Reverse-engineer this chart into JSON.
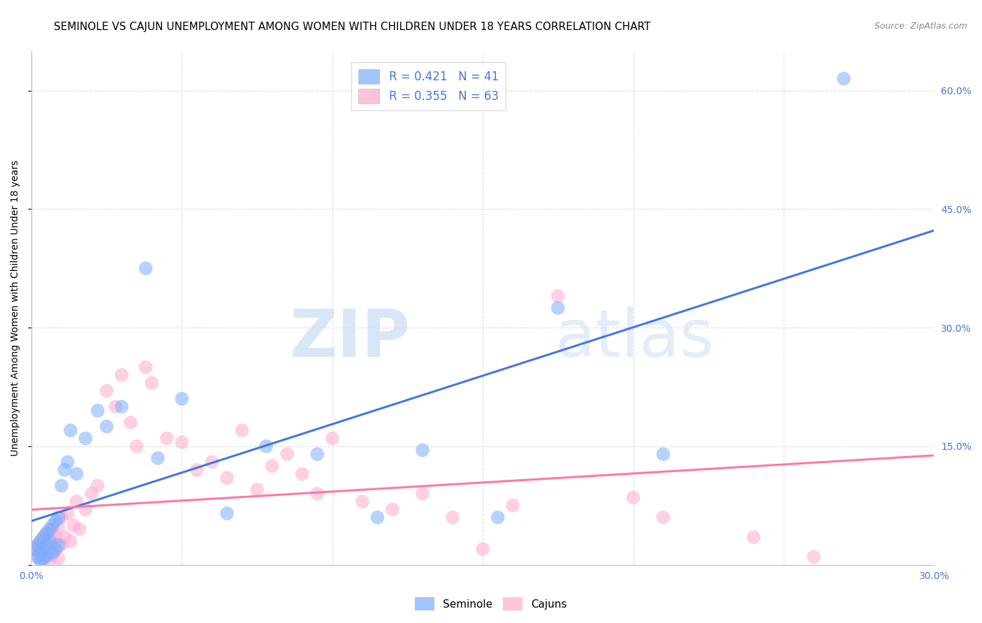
{
  "title": "SEMINOLE VS CAJUN UNEMPLOYMENT AMONG WOMEN WITH CHILDREN UNDER 18 YEARS CORRELATION CHART",
  "source": "Source: ZipAtlas.com",
  "ylabel": "Unemployment Among Women with Children Under 18 years",
  "watermark_zip": "ZIP",
  "watermark_atlas": "atlas",
  "xlim": [
    0.0,
    0.3
  ],
  "ylim": [
    0.0,
    0.65
  ],
  "xticks": [
    0.0,
    0.05,
    0.1,
    0.15,
    0.2,
    0.25,
    0.3
  ],
  "xtick_labels": [
    "0.0%",
    "",
    "",
    "",
    "",
    "",
    "30.0%"
  ],
  "ytick_positions": [
    0.0,
    0.15,
    0.3,
    0.45,
    0.6
  ],
  "ytick_labels_right": [
    "",
    "15.0%",
    "30.0%",
    "45.0%",
    "60.0%"
  ],
  "seminole_color": "#7aadff",
  "cajun_color": "#ffaacc",
  "seminole_line_color": "#4477dd",
  "cajun_line_color": "#ff77aa",
  "legend_line1": "R = 0.421   N = 41",
  "legend_line2": "R = 0.355   N = 63",
  "seminole_x": [
    0.001,
    0.002,
    0.002,
    0.003,
    0.003,
    0.003,
    0.004,
    0.004,
    0.004,
    0.005,
    0.005,
    0.005,
    0.006,
    0.006,
    0.007,
    0.007,
    0.008,
    0.008,
    0.009,
    0.009,
    0.01,
    0.011,
    0.012,
    0.013,
    0.015,
    0.018,
    0.022,
    0.025,
    0.03,
    0.038,
    0.042,
    0.05,
    0.065,
    0.078,
    0.095,
    0.115,
    0.13,
    0.155,
    0.175,
    0.21,
    0.27
  ],
  "seminole_y": [
    0.02,
    0.025,
    0.01,
    0.03,
    0.015,
    0.005,
    0.035,
    0.02,
    0.008,
    0.04,
    0.025,
    0.012,
    0.045,
    0.03,
    0.05,
    0.015,
    0.055,
    0.02,
    0.06,
    0.025,
    0.1,
    0.12,
    0.13,
    0.17,
    0.115,
    0.16,
    0.195,
    0.175,
    0.2,
    0.375,
    0.135,
    0.21,
    0.065,
    0.15,
    0.14,
    0.06,
    0.145,
    0.06,
    0.325,
    0.14,
    0.615
  ],
  "cajun_x": [
    0.001,
    0.002,
    0.002,
    0.003,
    0.003,
    0.003,
    0.004,
    0.004,
    0.004,
    0.005,
    0.005,
    0.005,
    0.006,
    0.006,
    0.006,
    0.007,
    0.007,
    0.007,
    0.008,
    0.008,
    0.009,
    0.009,
    0.01,
    0.01,
    0.011,
    0.012,
    0.013,
    0.014,
    0.015,
    0.016,
    0.018,
    0.02,
    0.022,
    0.025,
    0.028,
    0.03,
    0.033,
    0.035,
    0.038,
    0.04,
    0.045,
    0.05,
    0.055,
    0.06,
    0.065,
    0.07,
    0.075,
    0.08,
    0.085,
    0.09,
    0.095,
    0.1,
    0.11,
    0.12,
    0.13,
    0.14,
    0.15,
    0.16,
    0.175,
    0.2,
    0.21,
    0.24,
    0.26
  ],
  "cajun_y": [
    0.018,
    0.012,
    0.025,
    0.008,
    0.02,
    0.03,
    0.015,
    0.025,
    0.035,
    0.01,
    0.028,
    0.04,
    0.005,
    0.022,
    0.038,
    0.012,
    0.03,
    0.045,
    0.018,
    0.035,
    0.008,
    0.048,
    0.025,
    0.06,
    0.035,
    0.065,
    0.03,
    0.05,
    0.08,
    0.045,
    0.07,
    0.09,
    0.1,
    0.22,
    0.2,
    0.24,
    0.18,
    0.15,
    0.25,
    0.23,
    0.16,
    0.155,
    0.12,
    0.13,
    0.11,
    0.17,
    0.095,
    0.125,
    0.14,
    0.115,
    0.09,
    0.16,
    0.08,
    0.07,
    0.09,
    0.06,
    0.02,
    0.075,
    0.34,
    0.085,
    0.06,
    0.035,
    0.01
  ],
  "background_color": "#ffffff",
  "grid_color": "#dddddd",
  "title_fontsize": 11,
  "axis_label_fontsize": 10,
  "tick_fontsize": 10,
  "tick_color": "#4477dd"
}
